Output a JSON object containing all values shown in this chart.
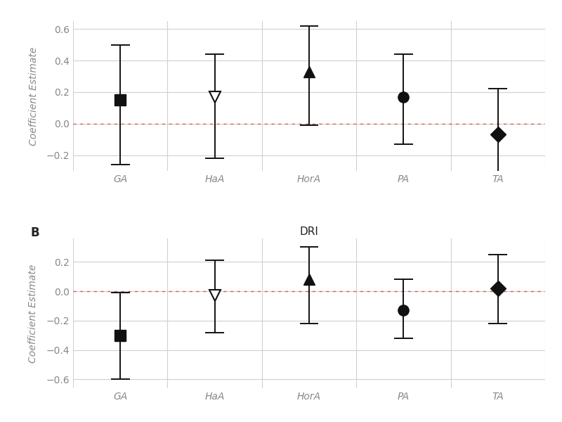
{
  "panel_A": {
    "label": "",
    "title": "",
    "categories": [
      "GA",
      "HaA",
      "HorA",
      "PA",
      "TA"
    ],
    "estimates": [
      0.15,
      0.17,
      0.33,
      0.17,
      -0.07
    ],
    "ci_low": [
      -0.26,
      -0.22,
      -0.01,
      -0.13,
      -0.36
    ],
    "ci_high": [
      0.5,
      0.44,
      0.62,
      0.44,
      0.22
    ],
    "markers": [
      "s",
      "v",
      "^",
      "o",
      "D"
    ],
    "filled": [
      true,
      false,
      true,
      true,
      true
    ],
    "ylim": [
      -0.3,
      0.65
    ],
    "yticks": [
      -0.2,
      0.0,
      0.2,
      0.4,
      0.6
    ]
  },
  "panel_B": {
    "label": "B",
    "title": "DRI",
    "categories": [
      "GA",
      "HaA",
      "HorA",
      "PA",
      "TA"
    ],
    "estimates": [
      -0.3,
      -0.03,
      0.08,
      -0.13,
      0.02
    ],
    "ci_low": [
      -0.6,
      -0.28,
      -0.22,
      -0.32,
      -0.22
    ],
    "ci_high": [
      -0.01,
      0.21,
      0.3,
      0.08,
      0.25
    ],
    "markers": [
      "s",
      "v",
      "^",
      "o",
      "D"
    ],
    "filled": [
      true,
      false,
      true,
      true,
      true
    ],
    "ylim": [
      -0.66,
      0.36
    ],
    "yticks": [
      -0.6,
      -0.4,
      -0.2,
      0.0,
      0.2
    ]
  },
  "ylabel": "Coefficient Estimate",
  "marker_size": 11,
  "line_color": "#111111",
  "ref_line_color": "#e05555",
  "grid_color": "#d0d0d0",
  "tick_label_color": "#888888",
  "axis_label_color": "#888888",
  "bg_color": "#ffffff",
  "linewidth": 1.4,
  "font_size_tick": 10,
  "font_size_label": 10,
  "font_size_panel": 11
}
